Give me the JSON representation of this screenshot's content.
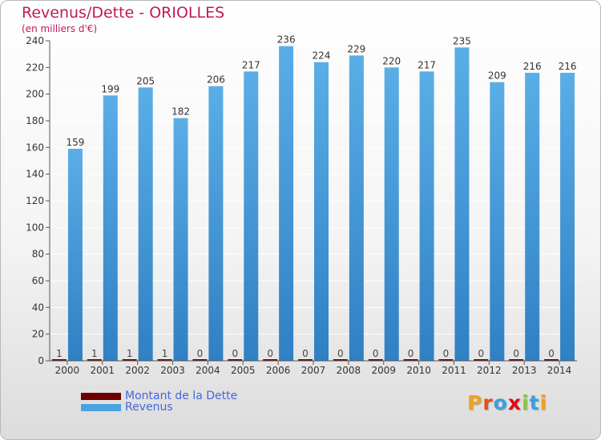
{
  "colors": {
    "debt": "#6e0000",
    "revenue": "#4aa3df",
    "revenue_dark": "#2e7fbf",
    "axis": "#555555",
    "grid": "#ffffff",
    "title": "#c2185b",
    "legend_text": "#4466dd"
  },
  "brand": {
    "logo_letters": [
      {
        "ch": "P",
        "color": "#f2a020"
      },
      {
        "ch": "r",
        "color": "#e94e1b"
      },
      {
        "ch": "o",
        "color": "#3aa0dc"
      },
      {
        "ch": "x",
        "color": "#e30613"
      },
      {
        "ch": "i",
        "color": "#8cc63f"
      },
      {
        "ch": "t",
        "color": "#3aa0dc"
      },
      {
        "ch": "i",
        "color": "#f2a020"
      }
    ]
  },
  "chart_data": {
    "type": "bar",
    "title": "Revenus/Dette - ORIOLLES",
    "subtitle": "(en milliers d'€)",
    "xlabel": "",
    "ylabel": "",
    "ylim": [
      0,
      240
    ],
    "yticks": [
      0,
      20,
      40,
      60,
      80,
      100,
      120,
      140,
      160,
      180,
      200,
      220,
      240
    ],
    "grid": true,
    "legend_position": "bottom-left",
    "categories": [
      "2000",
      "2001",
      "2002",
      "2003",
      "2004",
      "2005",
      "2006",
      "2007",
      "2008",
      "2009",
      "2010",
      "2011",
      "2012",
      "2013",
      "2014"
    ],
    "series": [
      {
        "name": "Montant de la Dette",
        "key": "debt",
        "values": [
          1,
          1,
          1,
          1,
          0,
          0,
          0,
          0,
          0,
          0,
          0,
          0,
          0,
          0,
          0
        ]
      },
      {
        "name": "Revenus",
        "key": "revenue",
        "values": [
          159,
          199,
          205,
          182,
          206,
          217,
          236,
          224,
          229,
          220,
          217,
          235,
          209,
          216,
          216
        ]
      }
    ]
  }
}
